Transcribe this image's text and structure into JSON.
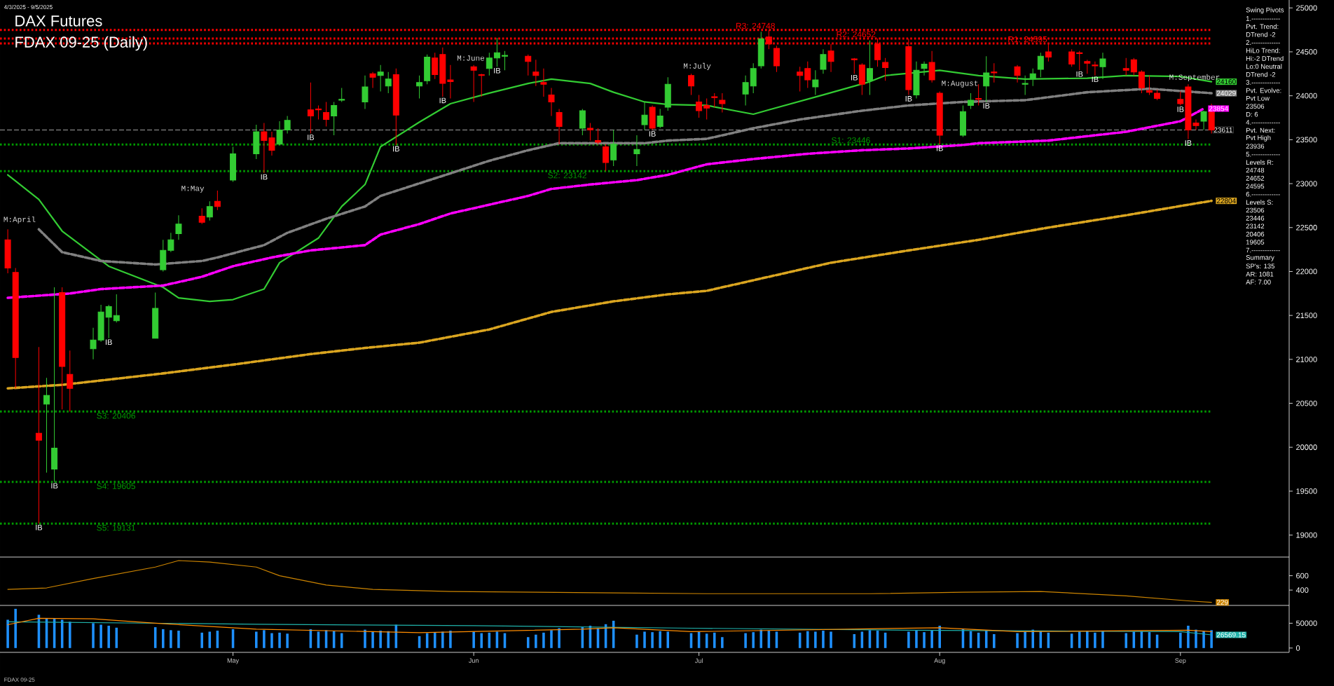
{
  "chart_data": [
    {
      "type": "candlestick",
      "title": "DAX Futures",
      "subtitle": "FDAX 09-25 (Daily)",
      "x": [
        "2025-04-03",
        "2025-04-04",
        "2025-04-07",
        "2025-04-08",
        "2025-04-09",
        "2025-04-10",
        "2025-04-11",
        "2025-04-14",
        "2025-04-15",
        "2025-04-16",
        "2025-04-17",
        "2025-04-22",
        "2025-04-23",
        "2025-04-24",
        "2025-04-25",
        "2025-04-28",
        "2025-04-29",
        "2025-04-30",
        "2025-05-02",
        "2025-05-05",
        "2025-05-06",
        "2025-05-07",
        "2025-05-08",
        "2025-05-09",
        "2025-05-12",
        "2025-05-13",
        "2025-05-14",
        "2025-05-15",
        "2025-05-16",
        "2025-05-19",
        "2025-05-20",
        "2025-05-21",
        "2025-05-22",
        "2025-05-23",
        "2025-05-26",
        "2025-05-27",
        "2025-05-28",
        "2025-05-29",
        "2025-05-30",
        "2025-06-02",
        "2025-06-03",
        "2025-06-04",
        "2025-06-05",
        "2025-06-06",
        "2025-06-09",
        "2025-06-10",
        "2025-06-11",
        "2025-06-12",
        "2025-06-13",
        "2025-06-16",
        "2025-06-17",
        "2025-06-18",
        "2025-06-19",
        "2025-06-20",
        "2025-06-23",
        "2025-06-24",
        "2025-06-25",
        "2025-06-26",
        "2025-06-27",
        "2025-06-30",
        "2025-07-01",
        "2025-07-02",
        "2025-07-03",
        "2025-07-04",
        "2025-07-07",
        "2025-07-08",
        "2025-07-09",
        "2025-07-10",
        "2025-07-11",
        "2025-07-14",
        "2025-07-15",
        "2025-07-16",
        "2025-07-17",
        "2025-07-18",
        "2025-07-21",
        "2025-07-22",
        "2025-07-23",
        "2025-07-24",
        "2025-07-25",
        "2025-07-28",
        "2025-07-29",
        "2025-07-30",
        "2025-07-31",
        "2025-08-01",
        "2025-08-04",
        "2025-08-05",
        "2025-08-06",
        "2025-08-07",
        "2025-08-08",
        "2025-08-11",
        "2025-08-12",
        "2025-08-13",
        "2025-08-14",
        "2025-08-15",
        "2025-08-18",
        "2025-08-19",
        "2025-08-20",
        "2025-08-21",
        "2025-08-22",
        "2025-08-25",
        "2025-08-26",
        "2025-08-27",
        "2025-08-28",
        "2025-08-29",
        "2025-09-01",
        "2025-09-02",
        "2025-09-03",
        "2025-09-04",
        "2025-09-05"
      ],
      "ohlc": [
        [
          22360,
          22480,
          21980,
          22040
        ],
        [
          21990,
          22040,
          20670,
          21020
        ],
        [
          20160,
          21140,
          19131,
          20080
        ],
        [
          20490,
          20790,
          19710,
          20590
        ],
        [
          19750,
          21820,
          19605,
          19990
        ],
        [
          21760,
          21820,
          20430,
          20920
        ],
        [
          20830,
          21100,
          20406,
          20670
        ],
        [
          21120,
          21360,
          21000,
          21220
        ],
        [
          21220,
          21620,
          21200,
          21540
        ],
        [
          21480,
          21620,
          21240,
          21600
        ],
        [
          21440,
          21740,
          21420,
          21500
        ],
        [
          21240,
          21760,
          21240,
          21580
        ],
        [
          22020,
          22360,
          22000,
          22240
        ],
        [
          22240,
          22440,
          22220,
          22360
        ],
        [
          22430,
          22640,
          22360,
          22540
        ],
        [
          22630,
          22720,
          22540,
          22560
        ],
        [
          22620,
          22800,
          22580,
          22740
        ],
        [
          22800,
          22920,
          22700,
          22740
        ],
        [
          23040,
          23420,
          23020,
          23340
        ],
        [
          23340,
          23670,
          23280,
          23590
        ],
        [
          23590,
          23690,
          23120,
          23490
        ],
        [
          23520,
          23590,
          23320,
          23380
        ],
        [
          23450,
          23710,
          23440,
          23610
        ],
        [
          23610,
          23770,
          23570,
          23720
        ],
        [
          23840,
          24150,
          23570,
          23770
        ],
        [
          23850,
          23890,
          23730,
          23840
        ],
        [
          23810,
          23930,
          23650,
          23730
        ],
        [
          23770,
          23930,
          23550,
          23890
        ],
        [
          23950,
          24090,
          23930,
          23960
        ],
        [
          23930,
          24230,
          23850,
          24100
        ],
        [
          24250,
          24270,
          24090,
          24210
        ],
        [
          24230,
          24350,
          24050,
          24270
        ],
        [
          24110,
          24270,
          24030,
          24190
        ],
        [
          24240,
          24310,
          23440,
          23780
        ],
        [
          24110,
          24230,
          23970,
          24150
        ],
        [
          24170,
          24470,
          24130,
          24440
        ],
        [
          24430,
          24490,
          24190,
          24240
        ],
        [
          24470,
          24550,
          23990,
          24140
        ],
        [
          24180,
          24350,
          23970,
          24160
        ],
        [
          24330,
          24350,
          23930,
          24290
        ],
        [
          24240,
          24250,
          23990,
          24230
        ],
        [
          24310,
          24490,
          24230,
          24430
        ],
        [
          24430,
          24660,
          24330,
          24490
        ],
        [
          24450,
          24510,
          24290,
          24460
        ],
        [
          24450,
          24470,
          24230,
          24390
        ],
        [
          24270,
          24410,
          24110,
          24230
        ],
        [
          24150,
          24310,
          23990,
          24130
        ],
        [
          24010,
          24090,
          23770,
          23930
        ],
        [
          23810,
          23850,
          23450,
          23650
        ],
        [
          23630,
          23850,
          23550,
          23830
        ],
        [
          23630,
          23690,
          23490,
          23610
        ],
        [
          23490,
          23630,
          23450,
          23470
        ],
        [
          23420,
          23450,
          23142,
          23240
        ],
        [
          23270,
          23610,
          23200,
          23450
        ],
        [
          23340,
          23550,
          23200,
          23390
        ],
        [
          23670,
          23930,
          23610,
          23780
        ],
        [
          23870,
          23890,
          23610,
          23630
        ],
        [
          23650,
          23850,
          23630,
          23770
        ],
        [
          23870,
          24210,
          23830,
          24130
        ],
        [
          24230,
          24250,
          24010,
          24110
        ],
        [
          23930,
          24010,
          23750,
          23830
        ],
        [
          23890,
          23970,
          23730,
          23860
        ],
        [
          23990,
          24030,
          23870,
          23980
        ],
        [
          23950,
          24030,
          23810,
          23910
        ],
        [
          24020,
          24230,
          23890,
          24150
        ],
        [
          24110,
          24370,
          24030,
          24310
        ],
        [
          24340,
          24730,
          24310,
          24650
        ],
        [
          24670,
          24748,
          24530,
          24590
        ],
        [
          24540,
          24570,
          24270,
          24340
        ],
        [
          24270,
          24330,
          24050,
          24230
        ],
        [
          24310,
          24390,
          24090,
          24180
        ],
        [
          24100,
          24290,
          24010,
          24180
        ],
        [
          24300,
          24530,
          24250,
          24470
        ],
        [
          24510,
          24590,
          24270,
          24390
        ],
        [
          24420,
          24430,
          24250,
          24410
        ],
        [
          24350,
          24370,
          24010,
          24130
        ],
        [
          24170,
          24630,
          24010,
          24310
        ],
        [
          24590,
          24652,
          24330,
          24410
        ],
        [
          24380,
          24430,
          24170,
          24320
        ],
        [
          24560,
          24650,
          24010,
          24070
        ],
        [
          24010,
          24390,
          23970,
          24290
        ],
        [
          24310,
          24390,
          24230,
          24360
        ],
        [
          24380,
          24510,
          24150,
          24180
        ],
        [
          24030,
          24050,
          23446,
          23550
        ],
        [
          23550,
          23890,
          23530,
          23820
        ],
        [
          23890,
          24030,
          23850,
          23950
        ],
        [
          23970,
          24130,
          23890,
          23960
        ],
        [
          24110,
          24450,
          23930,
          24260
        ],
        [
          24270,
          24370,
          24150,
          24260
        ],
        [
          24330,
          24350,
          24150,
          24230
        ],
        [
          24130,
          24230,
          24010,
          24140
        ],
        [
          24190,
          24310,
          24110,
          24250
        ],
        [
          24300,
          24490,
          24210,
          24450
        ],
        [
          24500,
          24595,
          24390,
          24440
        ],
        [
          24500,
          24530,
          24330,
          24360
        ],
        [
          24490,
          24510,
          24290,
          24480
        ],
        [
          24390,
          24410,
          24250,
          24370
        ],
        [
          24350,
          24390,
          24230,
          24340
        ],
        [
          24330,
          24490,
          24190,
          24420
        ],
        [
          24310,
          24430,
          24230,
          24290
        ],
        [
          24410,
          24430,
          24230,
          24270
        ],
        [
          24270,
          24290,
          24030,
          24090
        ],
        [
          24060,
          24230,
          24010,
          24040
        ],
        [
          24030,
          24070,
          23950,
          23970
        ],
        [
          23960,
          24050,
          23890,
          23910
        ],
        [
          24100,
          24130,
          23506,
          23610
        ],
        [
          23690,
          23730,
          23610,
          23660
        ],
        [
          23710,
          23830,
          23610,
          23820
        ],
        [
          23860,
          23910,
          23570,
          23611
        ]
      ],
      "colors": [
        "#ff0000",
        "#ff0000",
        "#ff0000",
        "#33cc33",
        "#33cc33",
        "#ff0000",
        "#ff0000",
        "#33cc33",
        "#33cc33",
        "#33cc33",
        "#33cc33",
        "#33cc33",
        "#33cc33",
        "#33cc33",
        "#33cc33",
        "#ff0000",
        "#33cc33",
        "#ff0000",
        "#33cc33",
        "#33cc33",
        "#ff0000",
        "#ff0000",
        "#33cc33",
        "#33cc33",
        "#ff0000",
        "#ff0000",
        "#ff0000",
        "#33cc33",
        "#33cc33",
        "#33cc33",
        "#ff0000",
        "#33cc33",
        "#33cc33",
        "#ff0000",
        "#33cc33",
        "#33cc33",
        "#ff0000",
        "#ff0000",
        "#ff0000",
        "#ff0000",
        "#ff0000",
        "#33cc33",
        "#33cc33",
        "#33cc33",
        "#ff0000",
        "#ff0000",
        "#ff0000",
        "#ff0000",
        "#ff0000",
        "#33cc33",
        "#ff0000",
        "#ff0000",
        "#ff0000",
        "#33cc33",
        "#33cc33",
        "#33cc33",
        "#ff0000",
        "#33cc33",
        "#33cc33",
        "#ff0000",
        "#ff0000",
        "#ff0000",
        "#ff0000",
        "#ff0000",
        "#33cc33",
        "#33cc33",
        "#33cc33",
        "#ff0000",
        "#ff0000",
        "#ff0000",
        "#ff0000",
        "#33cc33",
        "#33cc33",
        "#ff0000",
        "#ff0000",
        "#ff0000",
        "#33cc33",
        "#ff0000",
        "#ff0000",
        "#ff0000",
        "#33cc33",
        "#33cc33",
        "#ff0000",
        "#ff0000",
        "#33cc33",
        "#33cc33",
        "#ff0000",
        "#33cc33",
        "#ff0000",
        "#ff0000",
        "#33cc33",
        "#33cc33",
        "#33cc33",
        "#ff0000",
        "#ff0000",
        "#ff0000",
        "#ff0000",
        "#ff0000",
        "#33cc33",
        "#ff0000",
        "#ff0000",
        "#ff0000",
        "#ff0000",
        "#ff0000",
        "#ff0000",
        "#ff0000",
        "#ff0000",
        "#33cc33",
        "#ff0000"
      ],
      "series": [
        {
          "type": "line",
          "color": "#33cc33",
          "line_style": "solid",
          "x": [
            "2025-04-03",
            "2025-04-07",
            "2025-04-10",
            "2025-04-16",
            "2025-04-23",
            "2025-04-25",
            "2025-04-29",
            "2025-05-02",
            "2025-05-06",
            "2025-05-08",
            "2025-05-13",
            "2025-05-16",
            "2025-05-19",
            "2025-05-21",
            "2025-05-26",
            "2025-05-30",
            "2025-06-04",
            "2025-06-09",
            "2025-06-12",
            "2025-06-17",
            "2025-06-20",
            "2025-06-24",
            "2025-06-27",
            "2025-07-02",
            "2025-07-08",
            "2025-07-10",
            "2025-07-17",
            "2025-07-23",
            "2025-07-25",
            "2025-08-01",
            "2025-08-06",
            "2025-08-12",
            "2025-08-20",
            "2025-08-25",
            "2025-09-01",
            "2025-09-05"
          ],
          "values": [
            23100,
            22820,
            22460,
            22060,
            21820,
            21700,
            21660,
            21680,
            21800,
            22100,
            22380,
            22740,
            22990,
            23420,
            23700,
            23910,
            24030,
            24140,
            24190,
            24140,
            24040,
            23930,
            23900,
            23890,
            23790,
            23840,
            24010,
            24160,
            24230,
            24290,
            24230,
            24190,
            24200,
            24230,
            24220,
            24160
          ],
          "value_labels": [
            null,
            null,
            null,
            null,
            null,
            null,
            null,
            null,
            null,
            null,
            null,
            null,
            null,
            null,
            null,
            null,
            null,
            null,
            null,
            null,
            null,
            null,
            null,
            null,
            null,
            null,
            null,
            null,
            null,
            null,
            null,
            null,
            null,
            null,
            null,
            "24160"
          ]
        },
        {
          "type": "line",
          "color": "#808080",
          "line_style": "dashed",
          "x": [
            "2025-04-07",
            "2025-04-10",
            "2025-04-15",
            "2025-04-22",
            "2025-04-28",
            "2025-04-30",
            "2025-05-06",
            "2025-05-09",
            "2025-05-14",
            "2025-05-19",
            "2025-05-21",
            "2025-05-28",
            "2025-06-04",
            "2025-06-09",
            "2025-06-13",
            "2025-06-19",
            "2025-06-24",
            "2025-06-27",
            "2025-07-02",
            "2025-07-08",
            "2025-07-14",
            "2025-07-22",
            "2025-07-28",
            "2025-08-04",
            "2025-08-12",
            "2025-08-20",
            "2025-08-28",
            "2025-09-05"
          ],
          "values": [
            22480,
            22220,
            22120,
            22080,
            22120,
            22160,
            22300,
            22440,
            22600,
            22740,
            22860,
            23060,
            23260,
            23380,
            23460,
            23460,
            23460,
            23490,
            23510,
            23630,
            23730,
            23830,
            23890,
            23930,
            23950,
            24040,
            24080,
            24029
          ],
          "value_labels": [
            null,
            null,
            null,
            null,
            null,
            null,
            null,
            null,
            null,
            null,
            null,
            null,
            null,
            null,
            null,
            null,
            null,
            null,
            null,
            null,
            null,
            null,
            null,
            null,
            null,
            null,
            null,
            "24029"
          ]
        },
        {
          "type": "line",
          "color": "#ff00ff",
          "line_style": "dashed",
          "x": [
            "2025-04-03",
            "2025-04-11",
            "2025-04-15",
            "2025-04-23",
            "2025-04-28",
            "2025-05-02",
            "2025-05-07",
            "2025-05-12",
            "2025-05-19",
            "2025-05-21",
            "2025-05-26",
            "2025-05-30",
            "2025-06-04",
            "2025-06-09",
            "2025-06-12",
            "2025-06-17",
            "2025-06-23",
            "2025-06-27",
            "2025-07-02",
            "2025-07-08",
            "2025-07-15",
            "2025-07-22",
            "2025-07-28",
            "2025-08-04",
            "2025-08-06",
            "2025-08-15",
            "2025-08-25",
            "2025-09-01",
            "2025-09-04"
          ],
          "values": [
            21700,
            21750,
            21800,
            21840,
            21940,
            22060,
            22160,
            22240,
            22300,
            22420,
            22540,
            22660,
            22760,
            22860,
            22940,
            22990,
            23040,
            23100,
            23220,
            23280,
            23340,
            23380,
            23400,
            23440,
            23460,
            23490,
            23590,
            23710,
            23854
          ],
          "value_labels": [
            null,
            null,
            null,
            null,
            null,
            null,
            null,
            null,
            null,
            null,
            null,
            null,
            null,
            null,
            null,
            null,
            null,
            null,
            null,
            null,
            null,
            null,
            null,
            null,
            null,
            null,
            null,
            null,
            "23854"
          ]
        },
        {
          "type": "line",
          "color": "#daa520",
          "line_style": "dashed",
          "x": [
            "2025-04-03",
            "2025-04-10",
            "2025-04-23",
            "2025-05-02",
            "2025-05-12",
            "2025-05-19",
            "2025-05-26",
            "2025-06-04",
            "2025-06-12",
            "2025-06-20",
            "2025-06-27",
            "2025-07-02",
            "2025-07-10",
            "2025-07-18",
            "2025-07-28",
            "2025-08-06",
            "2025-08-15",
            "2025-08-25",
            "2025-09-02",
            "2025-09-05"
          ],
          "values": [
            20670,
            20710,
            20840,
            20940,
            21060,
            21130,
            21190,
            21340,
            21540,
            21660,
            21740,
            21780,
            21940,
            22100,
            22240,
            22360,
            22500,
            22640,
            22760,
            22804
          ],
          "value_labels": [
            null,
            null,
            null,
            null,
            null,
            null,
            null,
            null,
            null,
            null,
            null,
            null,
            null,
            null,
            null,
            null,
            null,
            null,
            null,
            "22804"
          ]
        }
      ],
      "xlim": [
        "2025-04-02",
        "2025-09-15"
      ],
      "ylim": [
        18750,
        25090
      ],
      "yticks": [
        19000,
        19500,
        20000,
        20500,
        21000,
        21500,
        22000,
        22500,
        23000,
        23500,
        24000,
        24500,
        25000
      ],
      "tick_labels": "y",
      "ref_lines": [
        {
          "axis": "y",
          "value": 24748,
          "label": "R3: 24748",
          "color": "#ff0000",
          "line_style": "dotted"
        },
        {
          "axis": "y",
          "value": 24652,
          "label": "R2: 24652",
          "color": "#ff0000",
          "line_style": "dotted"
        },
        {
          "axis": "y",
          "value": 24595,
          "label": "R1: 24595",
          "color": "#ff0000",
          "line_style": "dotted"
        },
        {
          "axis": "y",
          "value": 23446,
          "label": "S1: 23446",
          "color": "#009900",
          "line_style": "dotted"
        },
        {
          "axis": "y",
          "value": 23142,
          "label": "S2: 23142",
          "color": "#009900",
          "line_style": "dotted"
        },
        {
          "axis": "y",
          "value": 20406,
          "label": "S3: 20406",
          "color": "#009900",
          "line_style": "dotted"
        },
        {
          "axis": "y",
          "value": 19605,
          "label": "S4: 19605",
          "color": "#009900",
          "line_style": "dotted"
        },
        {
          "axis": "y",
          "value": 19131,
          "label": "S5: 19131",
          "color": "#009900",
          "line_style": "dotted"
        },
        {
          "axis": "y",
          "value": 23611,
          "label": "23611",
          "color": "#a0a0a0",
          "line_style": "dashed"
        }
      ],
      "annotations": [
        "4/3/2025 - 9/5/2025",
        "FDAX 09-25",
        "Swing Pivots",
        "1.-------------",
        "Pvt. Trend:",
        "DTrend -2",
        "2.-------------",
        "HiLo Trend:",
        "Hi:-2 DTrend",
        "Lo:0 Neutral",
        "DTrend -2",
        "3.-------------",
        "Pvt. Evolve:",
        "Pvt Low",
        "23506",
        "D: 6",
        "4.-------------",
        "Pvt. Next:",
        "Pvt High",
        "23936",
        "5.-------------",
        "Levels R:",
        "24748",
        "24652",
        "24595",
        "6.-------------",
        "Levels S:",
        "23506",
        "23446",
        "23142",
        "20406",
        "19605",
        "7.-------------",
        "Summary",
        "SP's: 135",
        "AR: 1081",
        "AF: 7.00",
        "M:April",
        "M:May",
        "M:June",
        "M:July",
        "M:August",
        "M:September",
        {
          "text": "IB",
          "x": "2025-05-12",
          "y": 23570
        },
        {
          "text": "IB",
          "x": "2025-05-06",
          "y": 23120
        },
        {
          "text": "IB",
          "x": "2025-04-16",
          "y": 21240
        },
        {
          "text": "IB",
          "x": "2025-04-07",
          "y": 19131
        },
        {
          "text": "IB",
          "x": "2025-04-09",
          "y": 19605
        },
        {
          "text": "IB",
          "x": "2025-05-23",
          "y": 23440
        },
        {
          "text": "IB",
          "x": "2025-05-29",
          "y": 23990
        },
        {
          "text": "IB",
          "x": "2025-06-05",
          "y": 24330
        },
        {
          "text": "IB",
          "x": "2025-06-25",
          "y": 23610
        },
        {
          "text": "IB",
          "x": "2025-07-21",
          "y": 24250
        },
        {
          "text": "IB",
          "x": "2025-07-28",
          "y": 24010
        },
        {
          "text": "IB",
          "x": "2025-08-01",
          "y": 23446
        },
        {
          "text": "IB",
          "x": "2025-08-07",
          "y": 23930
        },
        {
          "text": "IB",
          "x": "2025-08-19",
          "y": 24290
        },
        {
          "text": "IB",
          "x": "2025-08-21",
          "y": 24230
        },
        {
          "text": "IB",
          "x": "2025-09-01",
          "y": 23890
        },
        {
          "text": "IB",
          "x": "2025-09-02",
          "y": 23506
        }
      ]
    },
    {
      "type": "line",
      "color": "#cc8400",
      "x": [
        "2025-04-03",
        "2025-04-08",
        "2025-04-14",
        "2025-04-22",
        "2025-04-25",
        "2025-04-29",
        "2025-05-05",
        "2025-05-08",
        "2025-05-14",
        "2025-05-20",
        "2025-05-30",
        "2025-06-10",
        "2025-06-20",
        "2025-07-02",
        "2025-07-11",
        "2025-07-23",
        "2025-08-04",
        "2025-08-14",
        "2025-08-25",
        "2025-09-02",
        "2025-09-05"
      ],
      "values": [
        410,
        430,
        560,
        720,
        810,
        790,
        720,
        600,
        470,
        410,
        380,
        370,
        360,
        350,
        350,
        350,
        370,
        380,
        320,
        250,
        229
      ],
      "value_labels": [
        null,
        null,
        null,
        null,
        null,
        null,
        null,
        null,
        null,
        null,
        null,
        null,
        null,
        null,
        null,
        null,
        null,
        null,
        null,
        null,
        "229"
      ],
      "xlim": [
        "2025-04-02",
        "2025-09-15"
      ],
      "ylim": [
        187,
        859
      ],
      "yticks": [
        400,
        600
      ],
      "tick_labels": "y"
    },
    {
      "type": "bar",
      "x": [
        "2025-04-03",
        "2025-04-04",
        "2025-04-07",
        "2025-04-08",
        "2025-04-09",
        "2025-04-10",
        "2025-04-11",
        "2025-04-14",
        "2025-04-15",
        "2025-04-16",
        "2025-04-17",
        "2025-04-22",
        "2025-04-23",
        "2025-04-24",
        "2025-04-25",
        "2025-04-28",
        "2025-04-29",
        "2025-04-30",
        "2025-05-02",
        "2025-05-05",
        "2025-05-06",
        "2025-05-07",
        "2025-05-08",
        "2025-05-09",
        "2025-05-12",
        "2025-05-13",
        "2025-05-14",
        "2025-05-15",
        "2025-05-16",
        "2025-05-19",
        "2025-05-20",
        "2025-05-21",
        "2025-05-22",
        "2025-05-23",
        "2025-05-26",
        "2025-05-27",
        "2025-05-28",
        "2025-05-29",
        "2025-05-30",
        "2025-06-02",
        "2025-06-03",
        "2025-06-04",
        "2025-06-05",
        "2025-06-06",
        "2025-06-09",
        "2025-06-10",
        "2025-06-11",
        "2025-06-12",
        "2025-06-13",
        "2025-06-16",
        "2025-06-17",
        "2025-06-18",
        "2025-06-19",
        "2025-06-20",
        "2025-06-23",
        "2025-06-24",
        "2025-06-25",
        "2025-06-26",
        "2025-06-27",
        "2025-06-30",
        "2025-07-01",
        "2025-07-02",
        "2025-07-03",
        "2025-07-04",
        "2025-07-07",
        "2025-07-08",
        "2025-07-09",
        "2025-07-10",
        "2025-07-11",
        "2025-07-14",
        "2025-07-15",
        "2025-07-16",
        "2025-07-17",
        "2025-07-18",
        "2025-07-21",
        "2025-07-22",
        "2025-07-23",
        "2025-07-24",
        "2025-07-25",
        "2025-07-28",
        "2025-07-29",
        "2025-07-30",
        "2025-07-31",
        "2025-08-01",
        "2025-08-04",
        "2025-08-05",
        "2025-08-06",
        "2025-08-07",
        "2025-08-08",
        "2025-08-11",
        "2025-08-12",
        "2025-08-13",
        "2025-08-14",
        "2025-08-15",
        "2025-08-18",
        "2025-08-19",
        "2025-08-20",
        "2025-08-21",
        "2025-08-22",
        "2025-08-25",
        "2025-08-26",
        "2025-08-27",
        "2025-08-28",
        "2025-08-29",
        "2025-09-01",
        "2025-09-02",
        "2025-09-03",
        "2025-09-04",
        "2025-09-05"
      ],
      "series": [
        {
          "color": "#1e90ff",
          "values": [
            57000,
            79000,
            67000,
            60000,
            59000,
            57000,
            53000,
            50000,
            47000,
            45000,
            41000,
            42000,
            38000,
            36000,
            35000,
            31000,
            33000,
            35000,
            38000,
            33000,
            36000,
            30000,
            31000,
            29000,
            38000,
            33000,
            36000,
            34000,
            30000,
            37000,
            33000,
            35000,
            34000,
            47000,
            24000,
            30000,
            32000,
            33000,
            35000,
            33000,
            30000,
            31000,
            33000,
            30000,
            22000,
            27000,
            31000,
            36000,
            40000,
            42000,
            45000,
            40000,
            48000,
            55000,
            27000,
            33000,
            32000,
            34000,
            33000,
            30000,
            33000,
            29000,
            31000,
            22000,
            30000,
            32000,
            37000,
            35000,
            33000,
            31000,
            34000,
            33000,
            35000,
            33000,
            28000,
            33000,
            36000,
            35000,
            31000,
            33000,
            35000,
            32000,
            36000,
            45000,
            38000,
            34000,
            31000,
            36000,
            28000,
            30000,
            33000,
            37000,
            34000,
            31000,
            29000,
            33000,
            34000,
            31000,
            35000,
            30000,
            33000,
            34000,
            32000,
            27000,
            31000,
            45000,
            37000,
            34000,
            36000
          ]
        },
        {
          "type": "line",
          "color": "#20b2aa",
          "x": [
            "2025-04-03",
            "2025-05-05",
            "2025-06-02",
            "2025-06-30",
            "2025-07-28",
            "2025-09-01",
            "2025-09-05"
          ],
          "values": [
            53000,
            48000,
            45000,
            40000,
            36000,
            33000,
            26569.15
          ],
          "value_labels": [
            null,
            null,
            null,
            null,
            null,
            null,
            "26569.15"
          ]
        },
        {
          "type": "line",
          "color": "#ff8c00",
          "x": [
            "2025-04-03",
            "2025-04-07",
            "2025-04-14",
            "2025-04-22",
            "2025-05-05",
            "2025-05-26",
            "2025-06-16",
            "2025-06-20",
            "2025-06-30",
            "2025-08-01",
            "2025-08-11",
            "2025-09-02",
            "2025-09-05"
          ],
          "values": [
            47000,
            60000,
            59000,
            50000,
            38000,
            31000,
            38000,
            41000,
            33000,
            41000,
            33000,
            36000,
            33000
          ]
        }
      ],
      "xlim": [
        "2025-04-02",
        "2025-09-15"
      ],
      "xticks": [
        {
          "value": "2025-05-02",
          "label": "May"
        },
        {
          "value": "2025-06-02",
          "label": "Jun"
        },
        {
          "value": "2025-07-01",
          "label": "Jul"
        },
        {
          "value": "2025-08-01",
          "label": "Aug"
        },
        {
          "value": "2025-09-01",
          "label": "Sep"
        }
      ],
      "ylim": [
        -8700,
        85900
      ],
      "yticks": [
        0,
        50000
      ]
    }
  ]
}
